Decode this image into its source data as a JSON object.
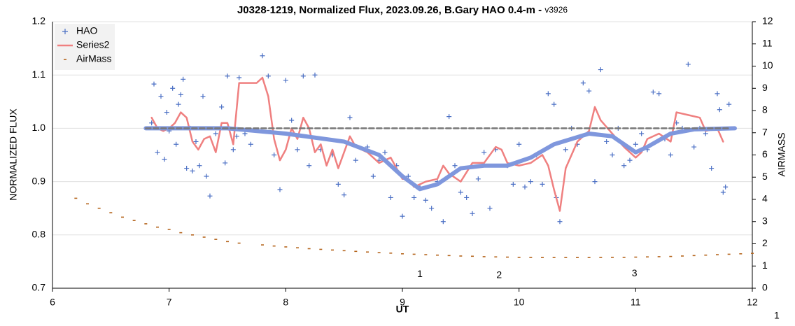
{
  "chart_data": {
    "type": "scatter",
    "title": "J0328-1219, Normalized Flux, 2023.09.26, B.Gary HAO 0.4-m - ",
    "title_suffix": "v3926",
    "x_label": "UT",
    "y_label": "NORMALIZED FLUX",
    "y2_label": "AIRMASS",
    "xlim": [
      6,
      12
    ],
    "xticks": [
      6,
      7,
      8,
      9,
      10,
      11,
      12
    ],
    "ylim": [
      0.7,
      1.2
    ],
    "yticks": [
      0.7,
      0.8,
      0.9,
      {
        "value": 1,
        "label": "1.0"
      },
      1.1,
      1.2
    ],
    "y2lim": [
      0,
      12
    ],
    "y2ticks": [
      0,
      1,
      2,
      3,
      4,
      5,
      6,
      7,
      8,
      9,
      10,
      11,
      12
    ],
    "grid": true,
    "legend": "upper left",
    "series": [
      {
        "name": "HAO",
        "color": "#4a6fc4",
        "style": "plus",
        "x": [
          6.85,
          6.87,
          6.9,
          6.93,
          6.96,
          6.98,
          7.0,
          7.03,
          7.06,
          7.08,
          7.1,
          7.12,
          7.15,
          7.18,
          7.2,
          7.23,
          7.26,
          7.29,
          7.32,
          7.35,
          7.4,
          7.45,
          7.48,
          7.5,
          7.55,
          7.58,
          7.6,
          7.65,
          7.7,
          7.8,
          7.85,
          7.9,
          7.95,
          8.0,
          8.05,
          8.1,
          8.15,
          8.2,
          8.25,
          8.3,
          8.4,
          8.45,
          8.5,
          8.55,
          8.6,
          8.7,
          8.75,
          8.8,
          8.85,
          8.9,
          8.95,
          9.0,
          9.05,
          9.1,
          9.15,
          9.2,
          9.25,
          9.3,
          9.35,
          9.4,
          9.45,
          9.5,
          9.55,
          9.6,
          9.65,
          9.7,
          9.75,
          9.8,
          9.9,
          9.95,
          10.0,
          10.05,
          10.1,
          10.15,
          10.2,
          10.25,
          10.3,
          10.32,
          10.35,
          10.4,
          10.45,
          10.5,
          10.55,
          10.6,
          10.65,
          10.7,
          10.75,
          10.8,
          10.85,
          10.9,
          10.95,
          11.0,
          11.05,
          11.1,
          11.15,
          11.2,
          11.25,
          11.3,
          11.35,
          11.4,
          11.45,
          11.5,
          11.55,
          11.6,
          11.65,
          11.7,
          11.72,
          11.75,
          11.77,
          11.8
        ],
        "values": [
          1.01,
          1.083,
          0.955,
          1.06,
          0.942,
          1.03,
          0.995,
          1.075,
          0.97,
          1.045,
          1.063,
          1.092,
          0.925,
          1.0,
          0.92,
          0.975,
          0.93,
          1.06,
          0.91,
          0.873,
          0.99,
          1.04,
          0.935,
          1.098,
          0.96,
          0.985,
          1.095,
          0.99,
          0.97,
          1.136,
          1.098,
          0.95,
          0.885,
          1.09,
          1.015,
          0.96,
          1.098,
          0.93,
          1.1,
          0.96,
          0.95,
          0.895,
          0.875,
          1.02,
          0.94,
          0.965,
          0.91,
          0.94,
          0.955,
          0.87,
          0.93,
          0.835,
          0.91,
          0.87,
          0.89,
          0.865,
          0.85,
          0.9,
          0.825,
          1.022,
          0.93,
          0.88,
          0.87,
          0.84,
          0.905,
          0.955,
          0.85,
          0.96,
          0.93,
          0.895,
          0.97,
          0.89,
          0.9,
          0.95,
          0.895,
          1.065,
          1.045,
          0.87,
          0.825,
          0.96,
          1.0,
          0.97,
          1.085,
          1.07,
          0.9,
          1.11,
          0.975,
          0.95,
          1.0,
          0.93,
          0.94,
          0.97,
          0.99,
          0.96,
          1.068,
          1.065,
          0.98,
          0.95,
          1.01,
          1.0,
          1.12,
          0.965,
          1.0,
          0.99,
          0.925,
          1.065,
          1.035,
          0.88,
          0.89,
          1.045
        ]
      },
      {
        "name": "Series2",
        "color": "#ef8080",
        "style": "line",
        "width": 2.5,
        "x": [
          6.85,
          6.9,
          6.95,
          7.0,
          7.05,
          7.1,
          7.15,
          7.2,
          7.25,
          7.3,
          7.35,
          7.4,
          7.45,
          7.5,
          7.55,
          7.6,
          7.7,
          7.75,
          7.8,
          7.85,
          7.9,
          7.95,
          8.0,
          8.05,
          8.1,
          8.15,
          8.2,
          8.25,
          8.3,
          8.35,
          8.4,
          8.45,
          8.5,
          8.55,
          8.6,
          8.7,
          8.8,
          8.9,
          9.0,
          9.05,
          9.1,
          9.2,
          9.3,
          9.35,
          9.4,
          9.5,
          9.6,
          9.7,
          9.8,
          9.85,
          9.9,
          10.0,
          10.1,
          10.2,
          10.25,
          10.3,
          10.35,
          10.4,
          10.5,
          10.6,
          10.65,
          10.7,
          10.8,
          10.9,
          11.0,
          11.05,
          11.1,
          11.2,
          11.3,
          11.35,
          11.45,
          11.55,
          11.6,
          11.7,
          11.75
        ],
        "values": [
          1.02,
          1.0,
          0.995,
          1.0,
          1.01,
          1.03,
          1.02,
          0.975,
          0.96,
          0.98,
          0.985,
          0.955,
          1.01,
          1.01,
          0.97,
          1.085,
          1.085,
          1.085,
          1.095,
          1.06,
          0.98,
          0.94,
          0.96,
          1.0,
          0.98,
          1.02,
          1.0,
          0.955,
          0.97,
          0.93,
          0.96,
          0.925,
          0.955,
          0.985,
          0.965,
          0.955,
          0.935,
          0.945,
          0.905,
          0.905,
          0.89,
          0.9,
          0.905,
          0.93,
          0.915,
          0.9,
          0.935,
          0.935,
          0.965,
          0.96,
          0.935,
          0.93,
          0.935,
          0.95,
          0.93,
          0.885,
          0.845,
          0.925,
          0.975,
          0.995,
          1.04,
          1.015,
          0.99,
          0.965,
          0.945,
          0.955,
          0.98,
          0.99,
          0.975,
          1.03,
          1.025,
          1.02,
          0.995,
          1.0,
          0.975
        ]
      },
      {
        "name": "AirMass",
        "color": "#b5651d",
        "style": "dash",
        "axis": "y2",
        "x": [
          6.2,
          6.3,
          6.4,
          6.5,
          6.6,
          6.7,
          6.8,
          6.9,
          7.0,
          7.1,
          7.2,
          7.3,
          7.4,
          7.5,
          7.6,
          7.8,
          7.9,
          8.0,
          8.1,
          8.2,
          8.3,
          8.4,
          8.5,
          8.6,
          8.7,
          8.8,
          8.9,
          9.0,
          9.1,
          9.2,
          9.3,
          9.4,
          9.5,
          9.6,
          9.7,
          9.8,
          9.9,
          10.0,
          10.1,
          10.2,
          10.3,
          10.4,
          10.5,
          10.6,
          10.7,
          10.8,
          10.9,
          11.0,
          11.1,
          11.2,
          11.3,
          11.4,
          11.5,
          11.6,
          11.7,
          11.8,
          11.9,
          12.0
        ],
        "values": [
          4.05,
          3.8,
          3.6,
          3.4,
          3.2,
          3.05,
          2.9,
          2.75,
          2.65,
          2.5,
          2.4,
          2.3,
          2.2,
          2.1,
          2.03,
          1.95,
          1.9,
          1.86,
          1.82,
          1.78,
          1.75,
          1.72,
          1.69,
          1.66,
          1.63,
          1.6,
          1.58,
          1.55,
          1.53,
          1.51,
          1.49,
          1.47,
          1.45,
          1.44,
          1.42,
          1.41,
          1.4,
          1.39,
          1.385,
          1.38,
          1.38,
          1.38,
          1.38,
          1.38,
          1.385,
          1.39,
          1.39,
          1.4,
          1.41,
          1.42,
          1.43,
          1.45,
          1.47,
          1.49,
          1.51,
          1.53,
          1.55,
          1.57
        ]
      },
      {
        "color": "#7f97dd",
        "style": "line",
        "width": 6,
        "x": [
          6.8,
          7.5,
          8.0,
          8.5,
          8.8,
          9.0,
          9.15,
          9.3,
          9.5,
          9.7,
          9.9,
          10.1,
          10.3,
          10.6,
          10.8,
          11.0,
          11.1,
          11.3,
          11.5,
          11.85
        ],
        "values": [
          1.0,
          1.0,
          0.99,
          0.975,
          0.95,
          0.91,
          0.886,
          0.895,
          0.925,
          0.93,
          0.93,
          0.945,
          0.97,
          0.99,
          0.985,
          0.955,
          0.965,
          0.99,
          0.998,
          1.0
        ]
      },
      {
        "color": "#777777",
        "style": "dashed",
        "width": 2.5,
        "x": [
          6.8,
          11.8
        ],
        "values": [
          1.0,
          1.0
        ]
      }
    ],
    "annotations": [
      {
        "text": "1",
        "x": 9.15,
        "y": 0.726
      },
      {
        "text": "2",
        "x": 9.83,
        "y": 0.724
      },
      {
        "text": "3",
        "x": 10.99,
        "y": 0.727
      }
    ],
    "page_number": "1"
  }
}
